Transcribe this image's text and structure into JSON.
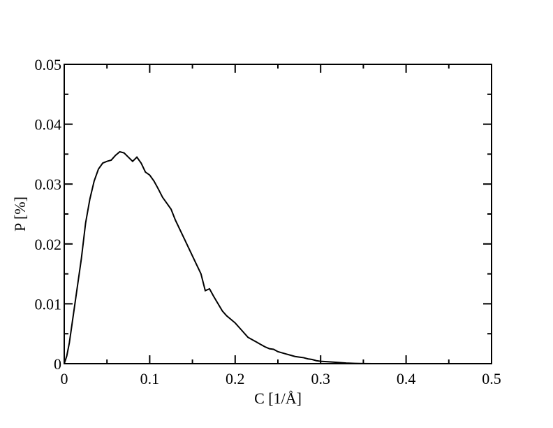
{
  "chart_data": {
    "type": "line",
    "xlabel": "C [1/Å]",
    "ylabel": "P [%]",
    "xlim": [
      0,
      0.5
    ],
    "ylim": [
      0,
      0.05
    ],
    "x_ticks": [
      "0",
      "0.1",
      "0.2",
      "0.3",
      "0.4",
      "0.5"
    ],
    "y_ticks": [
      "0",
      "0.01",
      "0.02",
      "0.03",
      "0.04",
      "0.05"
    ],
    "grid": false,
    "series": [
      {
        "x": [
          0,
          0.003,
          0.006,
          0.01,
          0.015,
          0.02,
          0.025,
          0.03,
          0.035,
          0.04,
          0.045,
          0.05,
          0.055,
          0.06,
          0.065,
          0.07,
          0.075,
          0.08,
          0.085,
          0.09,
          0.095,
          0.1,
          0.105,
          0.11,
          0.115,
          0.12,
          0.125,
          0.13,
          0.135,
          0.14,
          0.145,
          0.15,
          0.155,
          0.16,
          0.165,
          0.17,
          0.175,
          0.18,
          0.185,
          0.19,
          0.195,
          0.2,
          0.205,
          0.21,
          0.215,
          0.22,
          0.225,
          0.23,
          0.235,
          0.24,
          0.245,
          0.25,
          0.255,
          0.26,
          0.265,
          0.27,
          0.275,
          0.28,
          0.285,
          0.29,
          0.295,
          0.3,
          0.31,
          0.32,
          0.33,
          0.34,
          0.35,
          0.36
        ],
        "y": [
          0,
          0.0013,
          0.0035,
          0.0075,
          0.0125,
          0.0175,
          0.0235,
          0.0275,
          0.0305,
          0.0325,
          0.0335,
          0.0338,
          0.034,
          0.0348,
          0.0354,
          0.0352,
          0.0345,
          0.0338,
          0.0345,
          0.0335,
          0.032,
          0.0315,
          0.0305,
          0.0292,
          0.0278,
          0.0268,
          0.0258,
          0.024,
          0.0225,
          0.021,
          0.0195,
          0.018,
          0.0165,
          0.015,
          0.0122,
          0.0125,
          0.0112,
          0.01,
          0.0088,
          0.008,
          0.0074,
          0.0068,
          0.006,
          0.0052,
          0.0044,
          0.004,
          0.0036,
          0.0032,
          0.0028,
          0.0025,
          0.0024,
          0.002,
          0.0018,
          0.0016,
          0.0014,
          0.0012,
          0.0011,
          0.001,
          0.0008,
          0.0007,
          0.0005,
          0.0004,
          0.0003,
          0.0002,
          0.0001,
          5e-05,
          2e-05,
          0
        ]
      }
    ]
  }
}
